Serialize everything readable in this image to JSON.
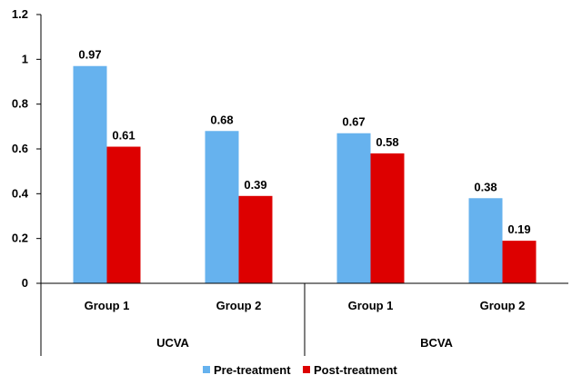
{
  "chart_data": {
    "type": "bar",
    "title": "",
    "xlabel": "",
    "ylabel": "",
    "ylim": [
      0,
      1.2
    ],
    "yticks": [
      {
        "value": 0,
        "label": "0"
      },
      {
        "value": 0.2,
        "label": "0.2"
      },
      {
        "value": 0.4,
        "label": "0.4"
      },
      {
        "value": 0.6,
        "label": "0.6"
      },
      {
        "value": 0.8,
        "label": "0.8"
      },
      {
        "value": 1,
        "label": "1"
      },
      {
        "value": 1.2,
        "label": "1.2"
      }
    ],
    "groups": [
      {
        "label": "UCVA",
        "categories": [
          "Group 1",
          "Group 2"
        ]
      },
      {
        "label": "BCVA",
        "categories": [
          "Group 1",
          "Group 2"
        ]
      }
    ],
    "series": [
      {
        "name": "Pre-treatment",
        "color": "#66b2ee",
        "values": [
          0.97,
          0.68,
          0.67,
          0.38
        ],
        "labels": [
          "0.97",
          "0.68",
          "0.67",
          "0.38"
        ]
      },
      {
        "name": "Post-treatment",
        "color": "#dd0000",
        "values": [
          0.61,
          0.39,
          0.58,
          0.19
        ],
        "labels": [
          "0.61",
          "0.39",
          "0.58",
          "0.19"
        ]
      }
    ],
    "grid": false,
    "legend_position": "bottom"
  }
}
